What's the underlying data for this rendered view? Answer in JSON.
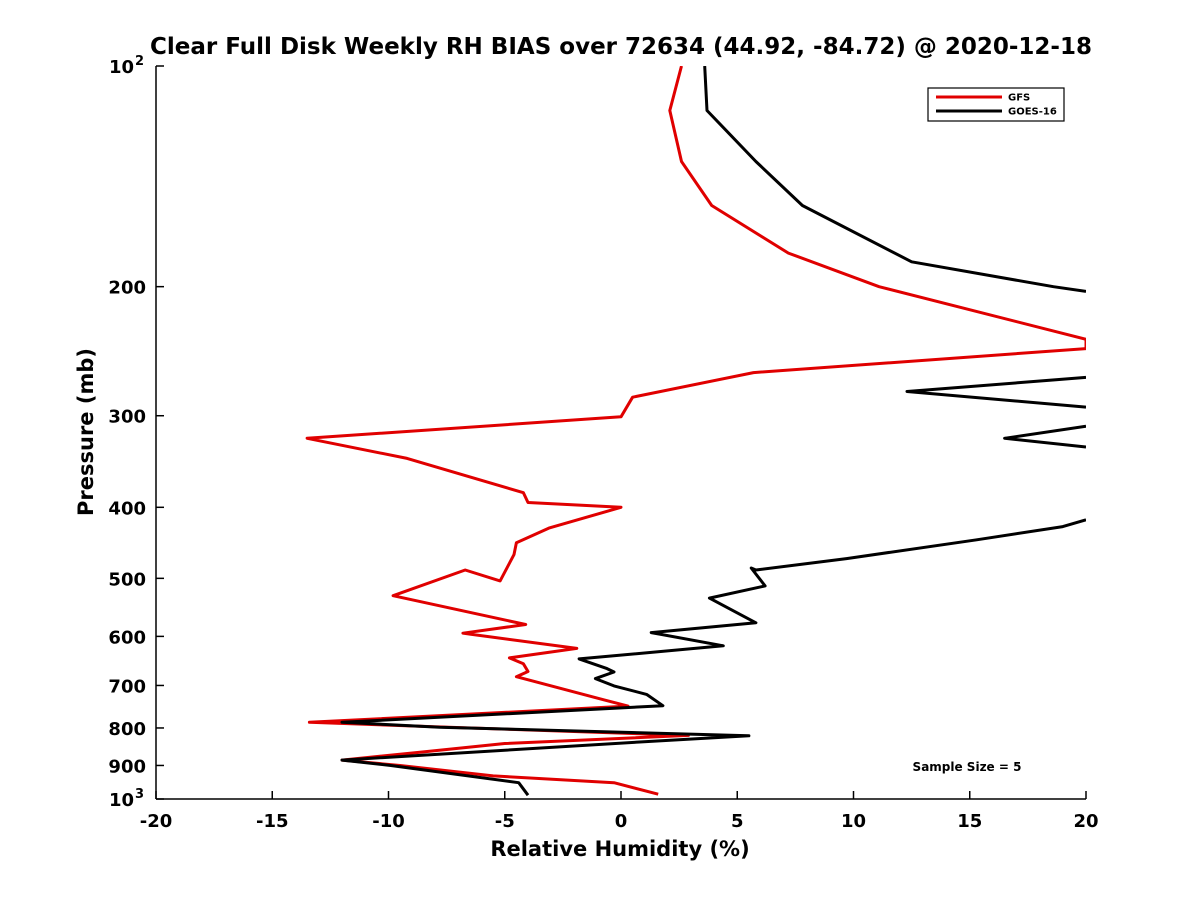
{
  "chart_data": {
    "type": "line",
    "title": "Clear Full Disk Weekly RH BIAS over 72634 (44.92, -84.72) @ 2020-12-18",
    "xlabel": "Relative Humidity (%)",
    "ylabel": "Pressure (mb)",
    "xlim": [
      -20,
      20
    ],
    "ylim": [
      100,
      1000
    ],
    "yscale": "log",
    "y_reversed": true,
    "x_ticks": [
      {
        "value": -20,
        "label": "-20"
      },
      {
        "value": -15,
        "label": "-15"
      },
      {
        "value": -10,
        "label": "-10"
      },
      {
        "value": -5,
        "label": "-5"
      },
      {
        "value": 0,
        "label": "0"
      },
      {
        "value": 5,
        "label": "5"
      },
      {
        "value": 10,
        "label": "10"
      },
      {
        "value": 15,
        "label": "15"
      },
      {
        "value": 20,
        "label": "20"
      }
    ],
    "y_ticks": [
      {
        "value": 100,
        "label": "10",
        "sup": "2"
      },
      {
        "value": 200,
        "label": "200"
      },
      {
        "value": 300,
        "label": "300"
      },
      {
        "value": 400,
        "label": "400"
      },
      {
        "value": 500,
        "label": "500"
      },
      {
        "value": 600,
        "label": "600"
      },
      {
        "value": 700,
        "label": "700"
      },
      {
        "value": 800,
        "label": "800"
      },
      {
        "value": 900,
        "label": "900"
      },
      {
        "value": 1000,
        "label": "10",
        "sup": "3"
      }
    ],
    "legend_position": "top-right",
    "annotation": "Sample Size = 5",
    "series": [
      {
        "name": "GFS",
        "color": "#e00000",
        "points": [
          [
            2.6,
            100
          ],
          [
            2.1,
            115
          ],
          [
            2.6,
            135
          ],
          [
            3.9,
            155
          ],
          [
            7.2,
            180
          ],
          [
            11.1,
            200
          ],
          [
            20,
            236
          ],
          [
            20,
            243
          ],
          [
            5.7,
            262
          ],
          [
            0.5,
            283
          ],
          [
            0,
            301
          ],
          [
            -13.5,
            322
          ],
          [
            -9.2,
            343
          ],
          [
            -4.2,
            382
          ],
          [
            -4.0,
            394
          ],
          [
            0,
            400
          ],
          [
            -3.1,
            427
          ],
          [
            -4.5,
            447
          ],
          [
            -4.6,
            464
          ],
          [
            -5.2,
            504
          ],
          [
            -6.7,
            487
          ],
          [
            -9.8,
            528
          ],
          [
            -4.1,
            578
          ],
          [
            -6.8,
            594
          ],
          [
            -1.9,
            623
          ],
          [
            -4.8,
            642
          ],
          [
            -4.2,
            654
          ],
          [
            -4.0,
            670
          ],
          [
            -4.5,
            681
          ],
          [
            -0.7,
            733
          ],
          [
            0.3,
            747
          ],
          [
            -13.4,
            786
          ],
          [
            -7.4,
            798
          ],
          [
            2.9,
            819
          ],
          [
            -5.0,
            840
          ],
          [
            -8.6,
            863
          ],
          [
            -12.0,
            885
          ],
          [
            -9.5,
            900
          ],
          [
            -5.5,
            930
          ],
          [
            -0.3,
            950
          ],
          [
            1.6,
            985
          ]
        ]
      },
      {
        "name": "GOES-16",
        "color": "#000000",
        "points": [
          [
            3.6,
            100
          ],
          [
            3.7,
            115
          ],
          [
            5.8,
            135
          ],
          [
            7.8,
            155
          ],
          [
            12.5,
            185
          ],
          [
            18.6,
            200
          ],
          [
            20,
            203
          ],
          [
            null,
            250
          ],
          [
            20,
            266
          ],
          [
            12.3,
            278
          ],
          [
            20,
            292
          ],
          [
            null,
            300
          ],
          [
            20,
            310
          ],
          [
            16.5,
            322
          ],
          [
            20,
            331
          ],
          [
            null,
            400
          ],
          [
            20,
            416
          ],
          [
            19.0,
            425
          ],
          [
            15.3,
            443
          ],
          [
            9.7,
            470
          ],
          [
            5.8,
            487
          ],
          [
            5.6,
            484
          ],
          [
            6.2,
            512
          ],
          [
            3.8,
            532
          ],
          [
            5.8,
            575
          ],
          [
            1.3,
            593
          ],
          [
            4.4,
            618
          ],
          [
            -1.8,
            644
          ],
          [
            -0.6,
            664
          ],
          [
            -0.3,
            671
          ],
          [
            -1.1,
            685
          ],
          [
            -0.3,
            701
          ],
          [
            1.1,
            720
          ],
          [
            1.8,
            746
          ],
          [
            -12.0,
            786
          ],
          [
            -7.8,
            798
          ],
          [
            5.5,
            820
          ],
          [
            0.8,
            836
          ],
          [
            -12.0,
            885
          ],
          [
            -9.9,
            900
          ],
          [
            -4.4,
            950
          ],
          [
            -4.0,
            988
          ]
        ]
      }
    ]
  }
}
